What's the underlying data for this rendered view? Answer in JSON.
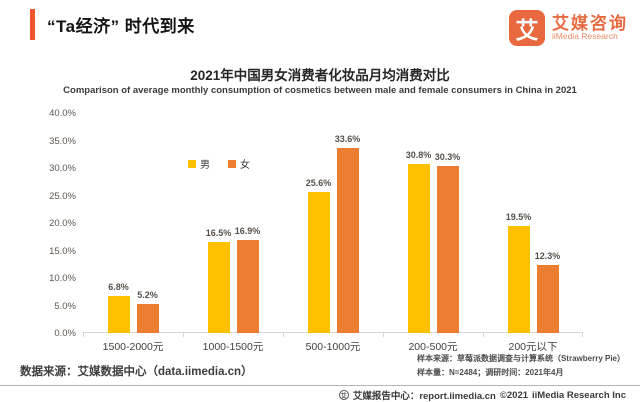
{
  "header": {
    "title": "“Ta经济” 时代到来",
    "accent_color": "#f0582c"
  },
  "logo": {
    "mark": "艾",
    "name_cn": "艾媒咨询",
    "name_en": "iiMedia Research",
    "brand_color": "#e8683f"
  },
  "chart_data": {
    "type": "bar",
    "title": "2021年中国男女消费者化妆品月均消费对比",
    "subtitle": "Comparison of average monthly consumption of cosmetics between male and female consumers in China in 2021",
    "categories": [
      "1500-2000元",
      "1000-1500元",
      "500-1000元",
      "200-500元",
      "200元以下"
    ],
    "series": [
      {
        "name": "男",
        "color": "#FFC000",
        "values": [
          6.8,
          16.5,
          25.6,
          30.8,
          19.5
        ]
      },
      {
        "name": "女",
        "color": "#ED7D31",
        "values": [
          5.2,
          16.9,
          33.6,
          30.3,
          12.3
        ]
      }
    ],
    "value_suffix": "%",
    "ylim": [
      0,
      40
    ],
    "yticks": [
      "40.0%",
      "35.0%",
      "30.0%",
      "25.0%",
      "20.0%",
      "15.0%",
      "10.0%",
      "5.0%",
      "0.0%"
    ],
    "grid": false,
    "legend_position": "inside-upper-left"
  },
  "footnotes": {
    "source_left": "数据来源：艾媒数据中心（data.iimedia.cn）",
    "sample_line1": "样本来源：草莓派数据调查与计算系统（Strawberry Pie）",
    "sample_line2": "样本量：N=2484；调研时间：2021年4月"
  },
  "footer": {
    "report_center": "艾媒报告中心：report.iimedia.cn",
    "copyright": "©2021",
    "company": "iiMedia Research Inc"
  }
}
